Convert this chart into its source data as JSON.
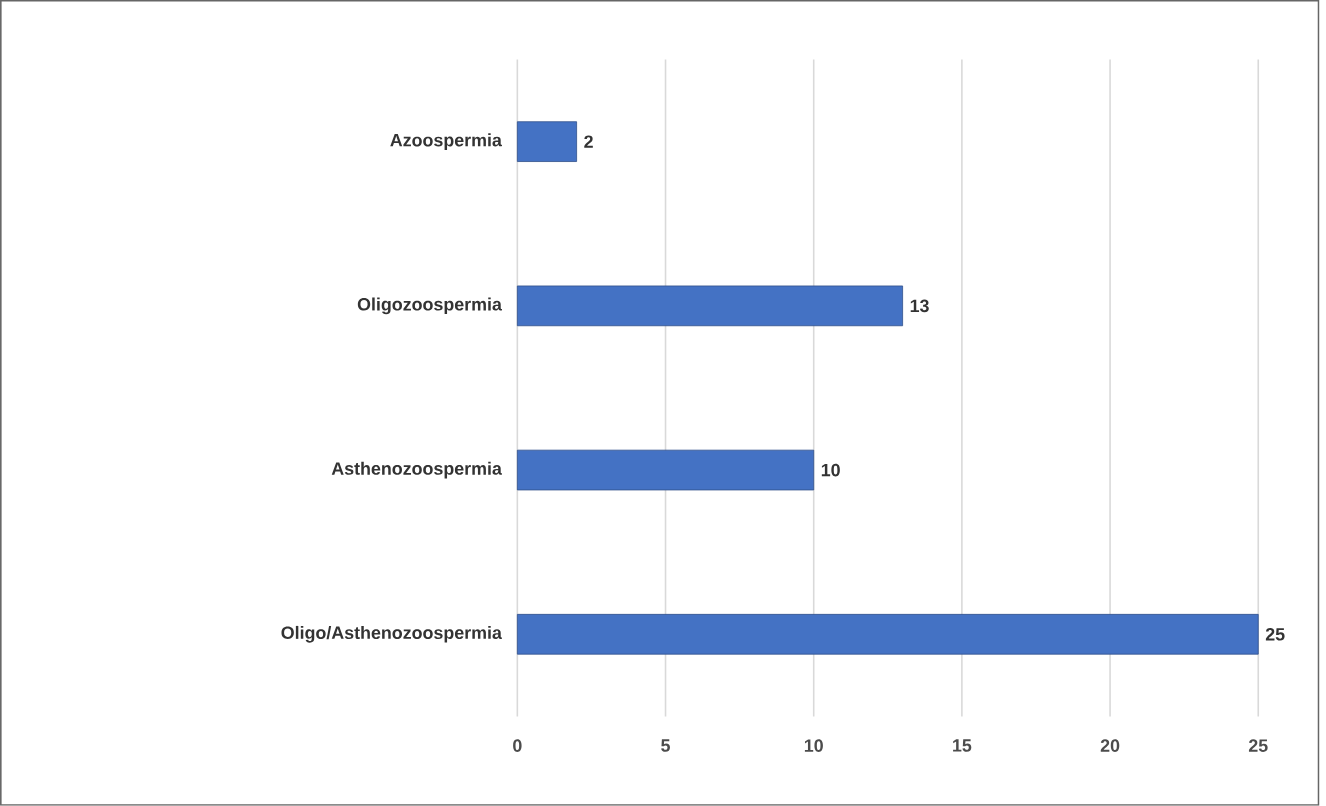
{
  "chart_data": {
    "type": "bar",
    "orientation": "horizontal",
    "categories": [
      "Azoospermia",
      "Oligozoospermia",
      "Asthenozoospermia",
      "Oligo/Asthenozoospermia"
    ],
    "values": [
      2,
      13,
      10,
      25
    ],
    "color": "#4472c4",
    "xlim": [
      0,
      27
    ],
    "xticks": [
      0,
      5,
      10,
      15,
      20,
      25
    ],
    "grid": "x",
    "data_labels": true
  }
}
